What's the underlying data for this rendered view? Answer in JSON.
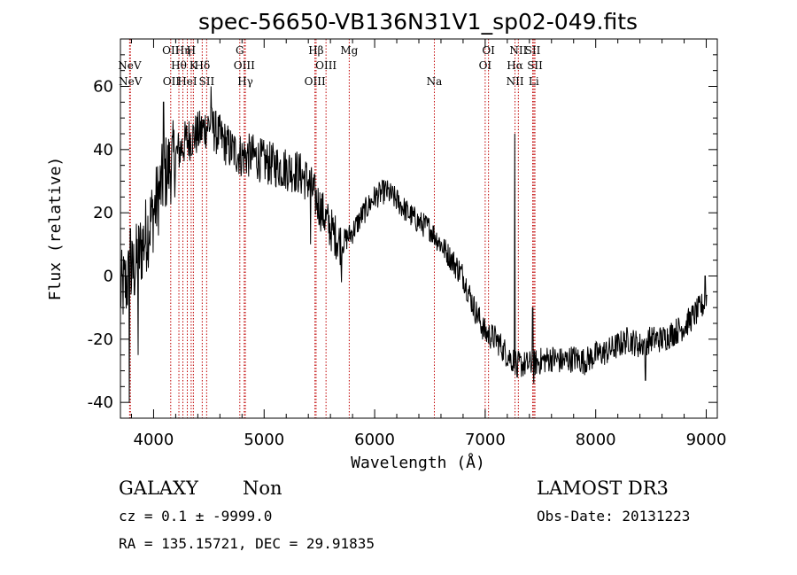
{
  "chart_data": {
    "type": "line",
    "title": "spec-56650-VB136N31V1_sp02-049.fits",
    "xlabel": "Wavelength (Å)",
    "ylabel": "Flux (relative)",
    "xlim": [
      3700,
      9100
    ],
    "ylim": [
      -45,
      75
    ],
    "xticks": [
      4000,
      5000,
      6000,
      7000,
      8000,
      9000
    ],
    "yticks": [
      -40,
      -20,
      0,
      20,
      40,
      60
    ],
    "spectrum_anchors": {
      "x": [
        3700,
        3800,
        3900,
        4000,
        4100,
        4200,
        4300,
        4400,
        4500,
        4600,
        4700,
        4800,
        4900,
        5000,
        5100,
        5200,
        5300,
        5400,
        5500,
        5600,
        5700,
        5800,
        5900,
        6000,
        6100,
        6200,
        6300,
        6400,
        6500,
        6600,
        6700,
        6800,
        6900,
        7000,
        7100,
        7200,
        7300,
        7400,
        7500,
        7600,
        7700,
        7800,
        7900,
        8000,
        8100,
        8200,
        8300,
        8400,
        8500,
        8600,
        8700,
        8800,
        8900,
        9000,
        9010
      ],
      "y": [
        -5,
        0,
        10,
        20,
        32,
        38,
        43,
        45,
        48,
        44,
        40,
        38,
        38,
        36,
        35,
        34,
        33,
        30,
        22,
        15,
        10,
        14,
        20,
        25,
        27,
        24,
        20,
        17,
        15,
        10,
        5,
        0,
        -10,
        -18,
        -20,
        -25,
        -28,
        -28,
        -27,
        -26,
        -27,
        -26,
        -27,
        -25,
        -24,
        -22,
        -20,
        -22,
        -20,
        -20,
        -18,
        -16,
        -12,
        -8,
        -5
      ]
    },
    "spectrum_noise_amplitude": 4,
    "spectrum_features": [
      {
        "x": 3780,
        "y": -40
      },
      {
        "x": 3790,
        "y": 15
      },
      {
        "x": 3860,
        "y": -25
      },
      {
        "x": 4090,
        "y": 55
      },
      {
        "x": 4520,
        "y": 60
      },
      {
        "x": 4545,
        "y": 52
      },
      {
        "x": 5420,
        "y": 10
      },
      {
        "x": 5700,
        "y": -2
      },
      {
        "x": 7160,
        "y": -22
      },
      {
        "x": 7250,
        "y": -30
      },
      {
        "x": 7268,
        "y": 45
      },
      {
        "x": 7290,
        "y": -32
      },
      {
        "x": 7430,
        "y": -10
      },
      {
        "x": 7440,
        "y": -34
      },
      {
        "x": 8450,
        "y": -33
      },
      {
        "x": 8990,
        "y": 0
      }
    ],
    "emission_lines": [
      {
        "wavelength": 3783,
        "label": "NeV",
        "row": 1
      },
      {
        "wavelength": 3790,
        "label": "NeV",
        "row": 2
      },
      {
        "wavelength": 4155,
        "label": "OII",
        "row": 0
      },
      {
        "wavelength": 4160,
        "label": "OII",
        "row": 2
      },
      {
        "wavelength": 4229,
        "label": "Hθ",
        "row": 1
      },
      {
        "wavelength": 4265,
        "label": "Hη",
        "row": 0
      },
      {
        "wavelength": 4305,
        "label": "HeI",
        "row": 2
      },
      {
        "wavelength": 4340,
        "label": "H",
        "row": 0
      },
      {
        "wavelength": 4360,
        "label": "K",
        "row": 1
      },
      {
        "wavelength": 4440,
        "label": "Hδ",
        "row": 1
      },
      {
        "wavelength": 4480,
        "label": "SII",
        "row": 2
      },
      {
        "wavelength": 4780,
        "label": "G",
        "row": 0
      },
      {
        "wavelength": 4820,
        "label": "OIII",
        "row": 1
      },
      {
        "wavelength": 4830,
        "label": "Hγ",
        "row": 2
      },
      {
        "wavelength": 5470,
        "label": "Hβ",
        "row": 0
      },
      {
        "wavelength": 5460,
        "label": "OIII",
        "row": 2
      },
      {
        "wavelength": 5560,
        "label": "OIII",
        "row": 1
      },
      {
        "wavelength": 5770,
        "label": "Mg",
        "row": 0
      },
      {
        "wavelength": 6540,
        "label": "Na",
        "row": 2
      },
      {
        "wavelength": 7030,
        "label": "OI",
        "row": 0
      },
      {
        "wavelength": 7000,
        "label": "OI",
        "row": 1
      },
      {
        "wavelength": 7300,
        "label": "NII",
        "row": 0
      },
      {
        "wavelength": 7270,
        "label": "Hα",
        "row": 1
      },
      {
        "wavelength": 7270,
        "label": "NII",
        "row": 2
      },
      {
        "wavelength": 7430,
        "label": "SII",
        "row": 0
      },
      {
        "wavelength": 7450,
        "label": "SII",
        "row": 1
      },
      {
        "wavelength": 7440,
        "label": "Li",
        "row": 2
      }
    ]
  },
  "footer": {
    "class": "GALAXY",
    "subclass": "Non",
    "survey": "LAMOST DR3",
    "redshift": "cz = 0.1 ± -9999.0",
    "obs_date": "Obs-Date: 20131223",
    "coords": "RA = 135.15721, DEC =  29.91835"
  },
  "colors": {
    "line": "#000000",
    "marker": "#c00000"
  }
}
